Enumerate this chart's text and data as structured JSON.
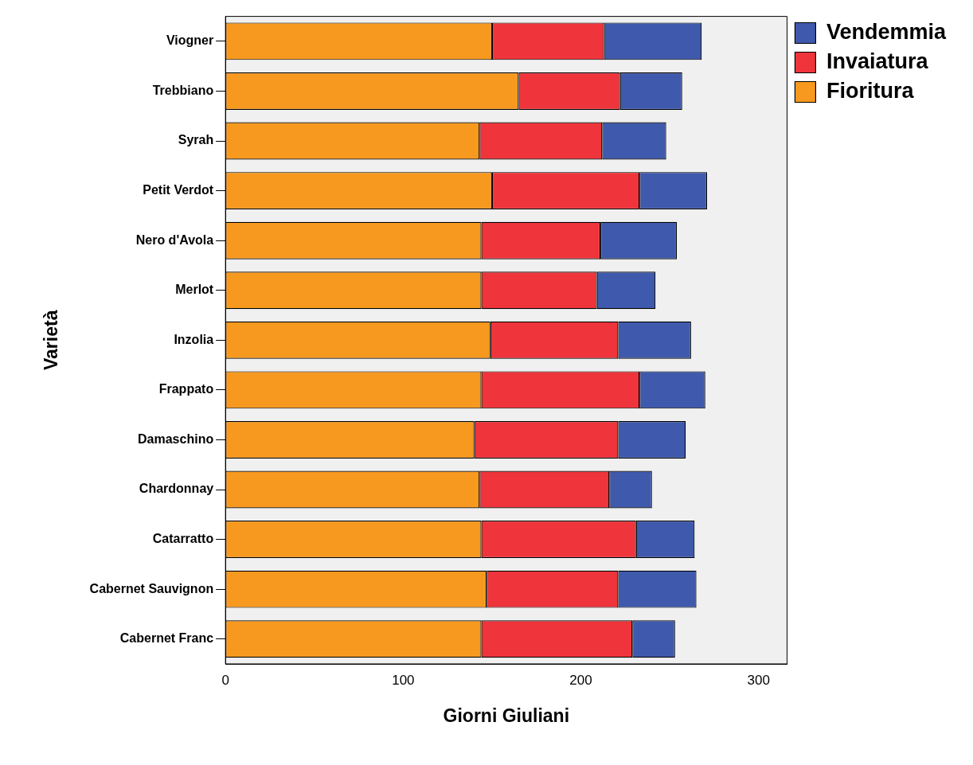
{
  "chart_data": {
    "type": "bar",
    "orientation": "horizontal",
    "stacked": true,
    "xlabel": "Giorni Giuliani",
    "ylabel": "Varietà",
    "categories": [
      "Viogner",
      "Trebbiano",
      "Syrah",
      "Petit Verdot",
      "Nero d'Avola",
      "Merlot",
      "Inzolia",
      "Frappato",
      "Damaschino",
      "Chardonnay",
      "Catarratto",
      "Cabernet Sauvignon",
      "Cabernet Franc"
    ],
    "series": [
      {
        "name": "Fioritura",
        "color": "#f7991f",
        "values": [
          150,
          165,
          143,
          150,
          144,
          144,
          149,
          144,
          140,
          143,
          144,
          147,
          144
        ]
      },
      {
        "name": "Invaiatura",
        "color": "#ef343b",
        "values": [
          63,
          57,
          69,
          83,
          67,
          65,
          72,
          89,
          81,
          73,
          87,
          74,
          85
        ]
      },
      {
        "name": "Vendemmia",
        "color": "#3f5aac",
        "values": [
          55,
          35,
          36,
          38,
          43,
          33,
          41,
          37,
          38,
          24,
          33,
          44,
          24
        ]
      }
    ],
    "xlim": [
      0,
      316
    ],
    "xticks": [
      0,
      100,
      200,
      300
    ],
    "grid": false,
    "legend": "top right"
  }
}
